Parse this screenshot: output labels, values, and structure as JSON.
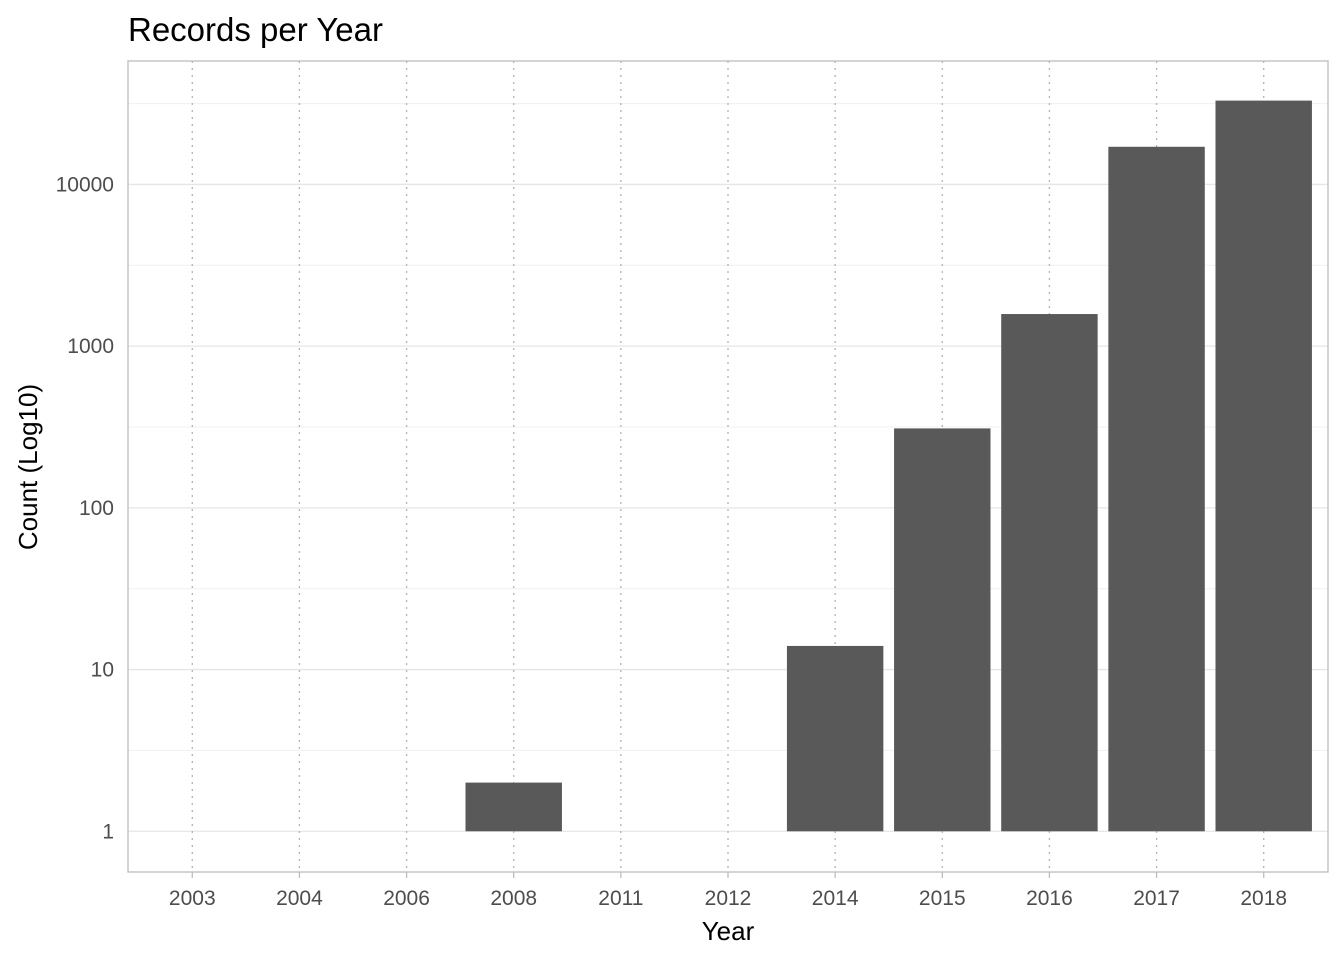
{
  "chart_data": {
    "type": "bar",
    "title": "Records per Year",
    "xlabel": "Year",
    "ylabel": "Count (Log10)",
    "y_scale": "log10",
    "ylim": [
      0.56,
      58000
    ],
    "y_ticks": [
      1,
      10,
      100,
      1000,
      10000
    ],
    "y_tick_labels": [
      "1",
      "10",
      "100",
      "1000",
      "10000"
    ],
    "categories": [
      "2003",
      "2004",
      "2006",
      "2008",
      "2011",
      "2012",
      "2014",
      "2015",
      "2016",
      "2017",
      "2018"
    ],
    "values": [
      1,
      1,
      1,
      2,
      1,
      1,
      14,
      310,
      1580,
      17100,
      33000
    ],
    "bar_color": "#595959",
    "grid": true,
    "legend": "none"
  }
}
